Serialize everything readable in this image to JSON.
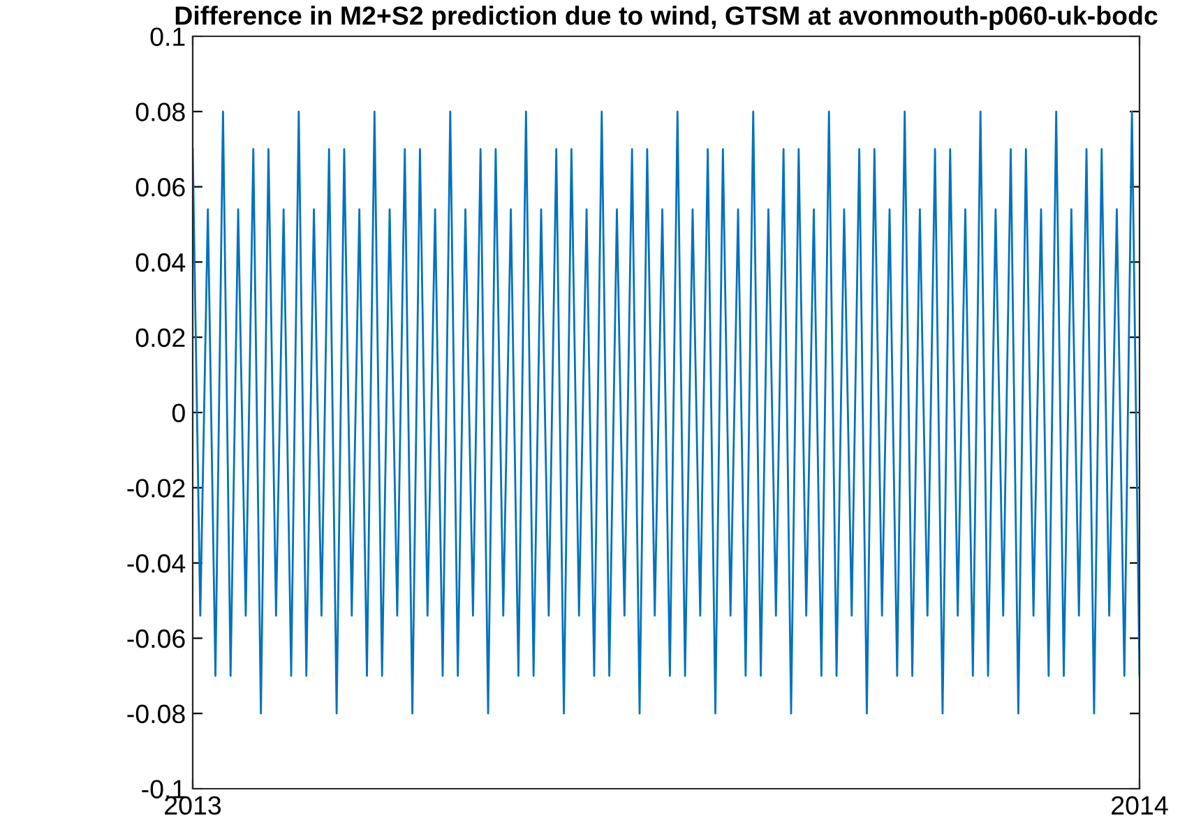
{
  "chart_data": {
    "type": "line",
    "title": "Difference in M2+S2 prediction due to wind, GTSM at avonmouth-p060-uk-bodc",
    "x": [
      2013,
      2013.008,
      2013.016,
      2013.024,
      2013.032,
      2013.04,
      2013.048,
      2013.056,
      2013.064,
      2013.072,
      2013.08,
      2013.088,
      2013.096,
      2013.104,
      2013.112,
      2013.12,
      2013.128,
      2013.136,
      2013.144,
      2013.152,
      2013.16,
      2013.168,
      2013.176,
      2013.184,
      2013.192,
      2013.2,
      2013.208,
      2013.216,
      2013.224,
      2013.232,
      2013.24,
      2013.248,
      2013.256,
      2013.264,
      2013.272,
      2013.28,
      2013.288,
      2013.296,
      2013.304,
      2013.312,
      2013.32,
      2013.328,
      2013.336,
      2013.344,
      2013.352,
      2013.36,
      2013.368,
      2013.376,
      2013.384,
      2013.392,
      2013.4,
      2013.408,
      2013.416,
      2013.424,
      2013.432,
      2013.44,
      2013.448,
      2013.456,
      2013.464,
      2013.472,
      2013.48,
      2013.488,
      2013.496,
      2013.504,
      2013.512,
      2013.52,
      2013.528,
      2013.536,
      2013.544,
      2013.552,
      2013.56,
      2013.568,
      2013.576,
      2013.584,
      2013.592,
      2013.6,
      2013.608,
      2013.616,
      2013.624,
      2013.632,
      2013.64,
      2013.648,
      2013.656,
      2013.664,
      2013.672,
      2013.68,
      2013.688,
      2013.696,
      2013.704,
      2013.712,
      2013.72,
      2013.728,
      2013.736,
      2013.744,
      2013.752,
      2013.76,
      2013.768,
      2013.776,
      2013.784,
      2013.792,
      2013.8,
      2013.808,
      2013.816,
      2013.824,
      2013.832,
      2013.84,
      2013.848,
      2013.856,
      2013.864,
      2013.872,
      2013.88,
      2013.888,
      2013.896,
      2013.904,
      2013.912,
      2013.92,
      2013.928,
      2013.936,
      2013.944,
      2013.952,
      2013.96,
      2013.968,
      2013.976,
      2013.984,
      2013.992,
      2014
    ],
    "series": [
      {
        "color": "#0072bd",
        "values": [
          0.07,
          -0.054,
          0.054,
          -0.07,
          0.08,
          -0.07,
          0.054,
          -0.054,
          0.07,
          -0.08,
          0.07,
          -0.054,
          0.054,
          -0.07,
          0.08,
          -0.07,
          0.054,
          -0.054,
          0.07,
          -0.08,
          0.07,
          -0.054,
          0.054,
          -0.07,
          0.08,
          -0.07,
          0.054,
          -0.054,
          0.07,
          -0.08,
          0.07,
          -0.054,
          0.054,
          -0.07,
          0.08,
          -0.07,
          0.054,
          -0.054,
          0.07,
          -0.08,
          0.07,
          -0.054,
          0.054,
          -0.07,
          0.08,
          -0.07,
          0.054,
          -0.054,
          0.07,
          -0.08,
          0.07,
          -0.054,
          0.054,
          -0.07,
          0.08,
          -0.07,
          0.054,
          -0.054,
          0.07,
          -0.08,
          0.07,
          -0.054,
          0.054,
          -0.07,
          0.08,
          -0.07,
          0.054,
          -0.054,
          0.07,
          -0.08,
          0.07,
          -0.054,
          0.054,
          -0.07,
          0.08,
          -0.07,
          0.054,
          -0.054,
          0.07,
          -0.08,
          0.07,
          -0.054,
          0.054,
          -0.07,
          0.08,
          -0.07,
          0.054,
          -0.054,
          0.07,
          -0.08,
          0.07,
          -0.054,
          0.054,
          -0.07,
          0.08,
          -0.07,
          0.054,
          -0.054,
          0.07,
          -0.08,
          0.07,
          -0.054,
          0.054,
          -0.07,
          0.08,
          -0.07,
          0.054,
          -0.054,
          0.07,
          -0.08,
          0.07,
          -0.054,
          0.054,
          -0.07,
          0.08,
          -0.07,
          0.054,
          -0.054,
          0.07,
          -0.08,
          0.07,
          -0.054,
          0.054,
          -0.07,
          0.08,
          -0.07
        ]
      }
    ],
    "xlim": [
      2013,
      2014
    ],
    "xticks": [
      2013,
      2014
    ],
    "ylim": [
      -0.1,
      0.1
    ],
    "yticks": [
      -0.1,
      -0.08,
      -0.06,
      -0.04,
      -0.02,
      0,
      0.02,
      0.04,
      0.06,
      0.08,
      0.1
    ],
    "grid": false,
    "marker": "none",
    "line_style": "solid"
  }
}
